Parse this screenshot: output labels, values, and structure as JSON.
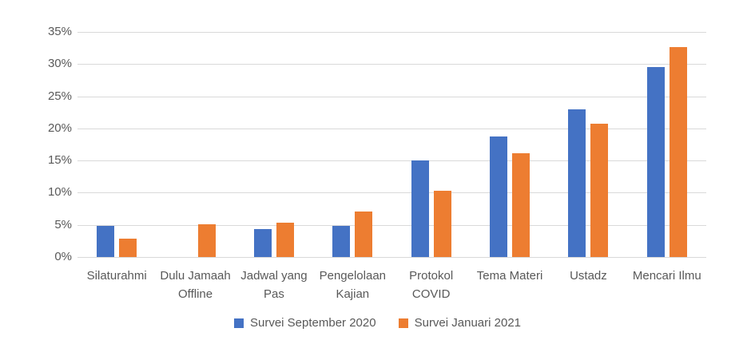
{
  "chart_data": {
    "type": "bar",
    "title": "",
    "categories": [
      "Silaturahmi",
      "Dulu Jamaah Offline",
      "Jadwal yang Pas",
      "Pengelolaan Kajian",
      "Protokol COVID",
      "Tema Materi",
      "Ustadz",
      "Mencari Ilmu"
    ],
    "series": [
      {
        "name": "Survei September 2020",
        "color": "#4472C4",
        "values": [
          4.8,
          0,
          4.3,
          4.8,
          15.0,
          18.7,
          23.0,
          29.5
        ]
      },
      {
        "name": "Survei Januari 2021",
        "color": "#ED7D31",
        "values": [
          2.8,
          5.1,
          5.3,
          7.1,
          10.3,
          16.1,
          20.7,
          32.7
        ]
      }
    ],
    "ylim": [
      0,
      35
    ],
    "ytick_step": 5,
    "ytick_labels": [
      "0%",
      "5%",
      "10%",
      "15%",
      "20%",
      "25%",
      "30%",
      "35%"
    ],
    "grid": true,
    "legend_position": "bottom",
    "styles": {
      "gridline_color": "#D9D9D9",
      "axis_line_color": "#D9D9D9",
      "tick_text_color": "#595959",
      "background": "#FFFFFF"
    }
  }
}
